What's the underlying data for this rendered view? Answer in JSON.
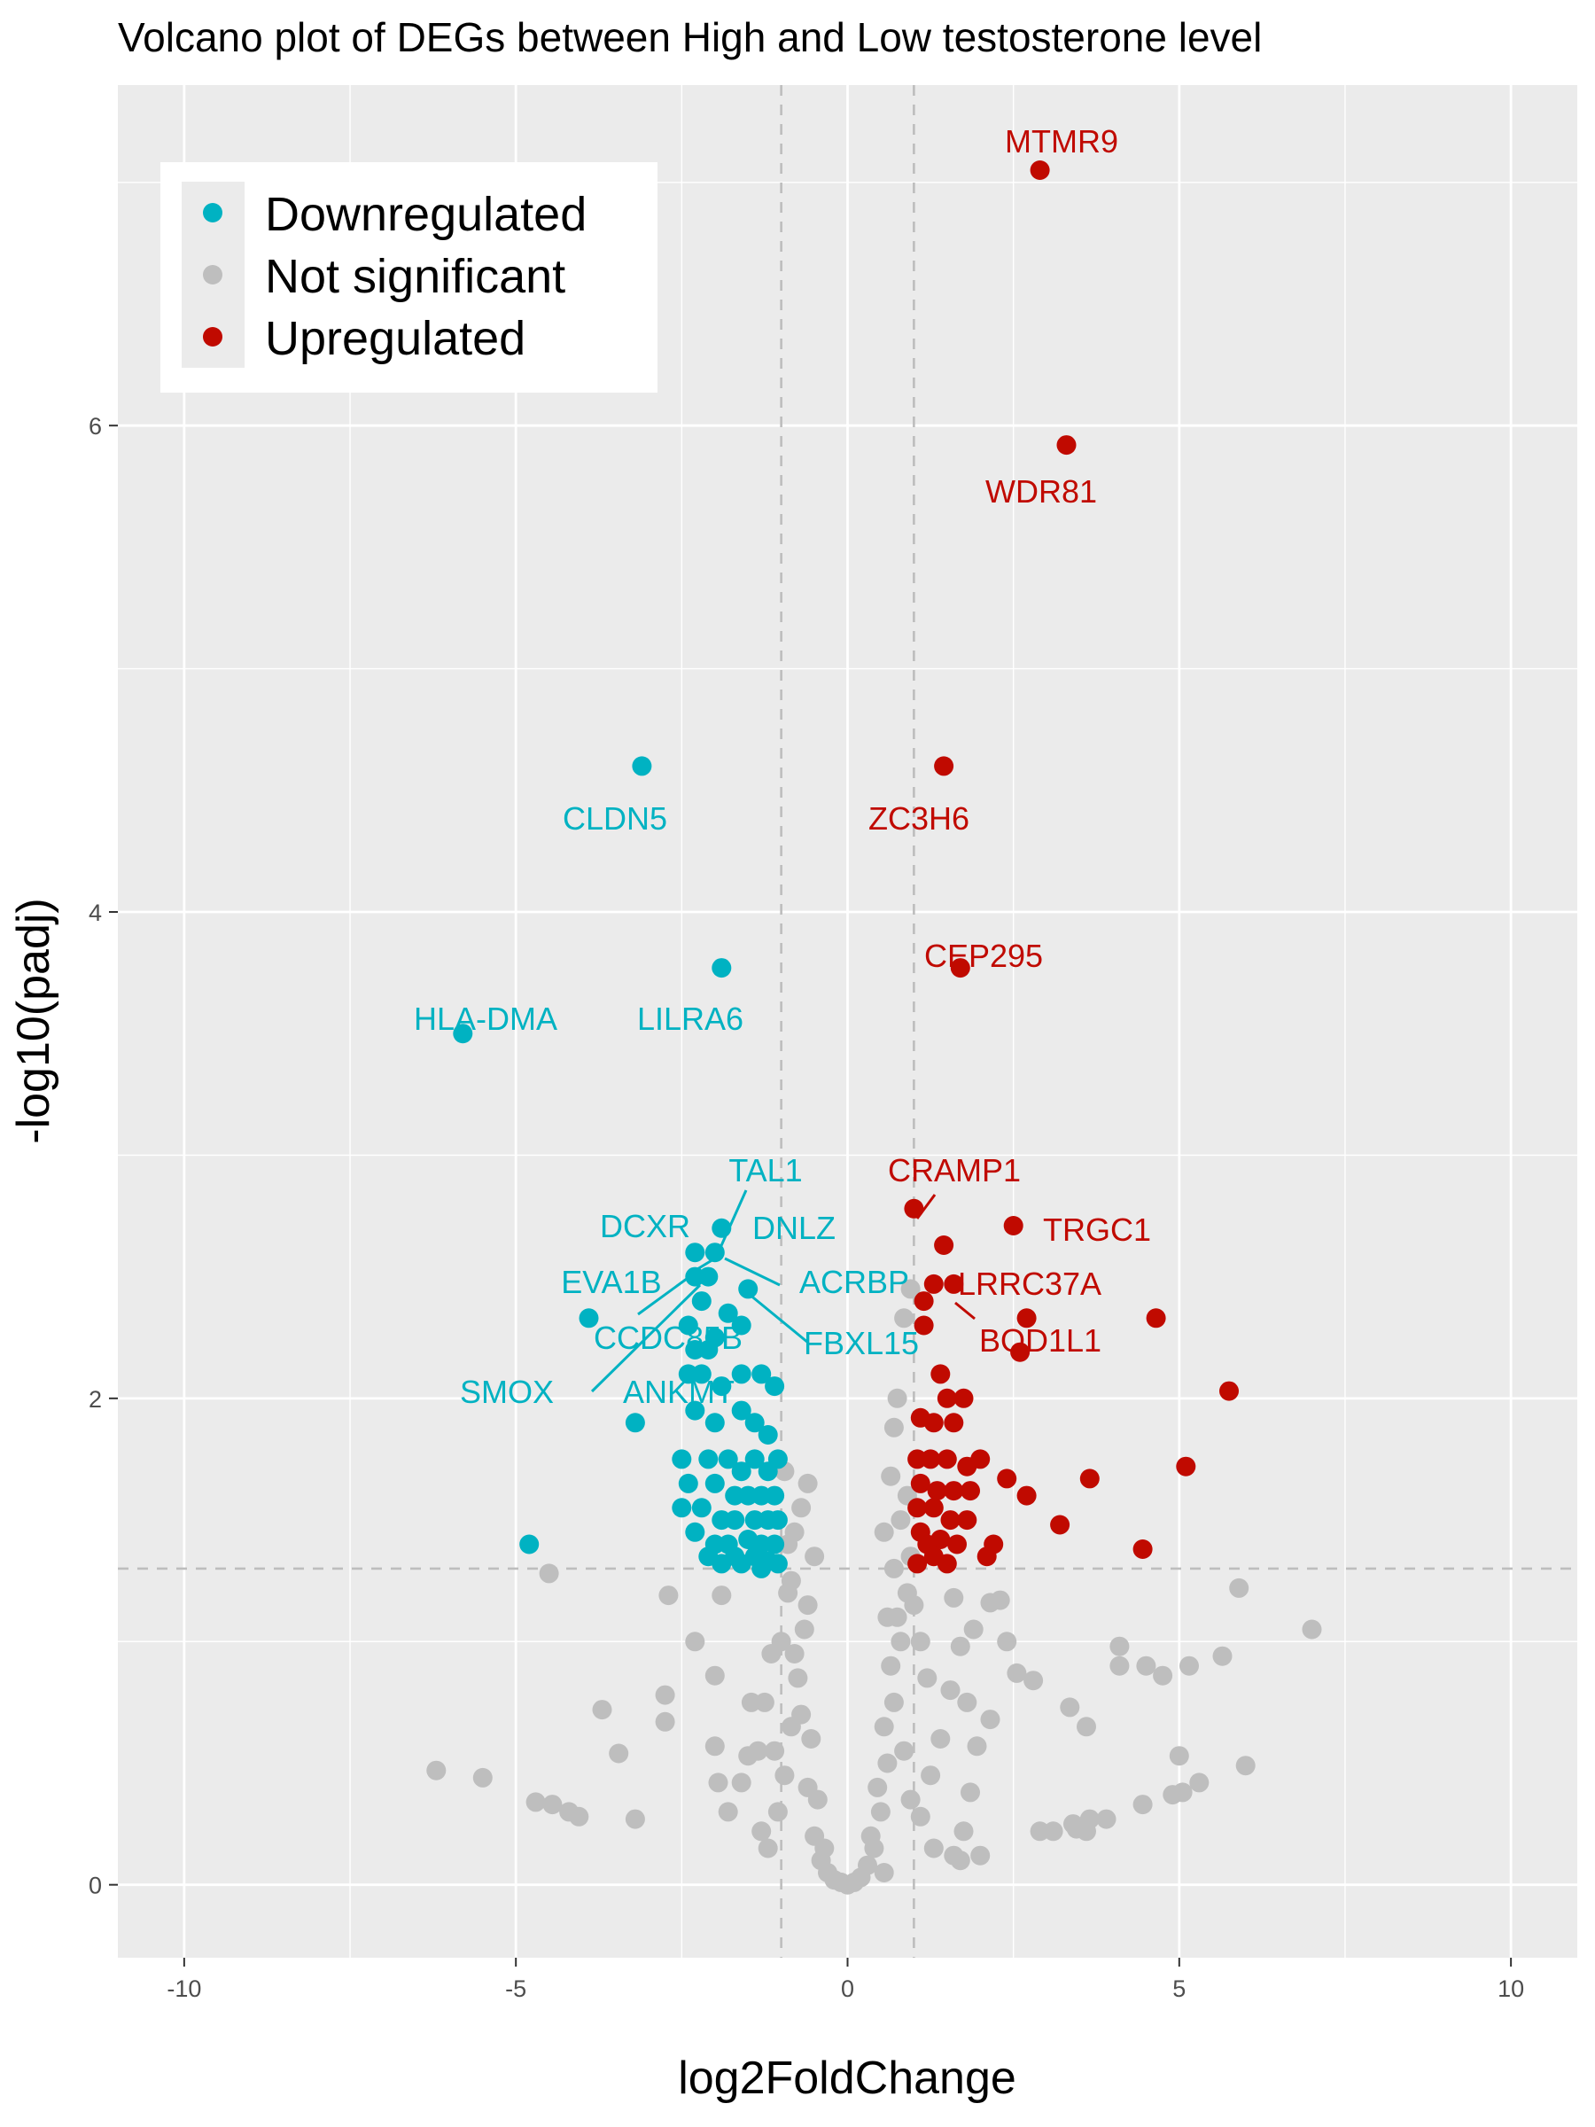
{
  "chart_data": {
    "type": "scatter",
    "title": "Volcano plot of DEGs between High and Low testosterone level",
    "xlabel": "log2FoldChange",
    "ylabel": "-log10(padj)",
    "xlim": [
      -11,
      11
    ],
    "ylim": [
      -0.3,
      7.4
    ],
    "x_ticks": [
      "-10",
      "-5",
      "0",
      "5",
      "10"
    ],
    "x_tick_values": [
      -10,
      -5,
      0,
      5,
      10
    ],
    "y_ticks": [
      "0",
      "2",
      "4",
      "6"
    ],
    "y_tick_values": [
      0,
      2,
      4,
      6
    ],
    "grid": true,
    "thresholds": {
      "log2fc": [
        -1,
        1
      ],
      "neg_log10_padj": 1.3
    },
    "legend": {
      "position": "top-left",
      "entries": [
        {
          "label": "Downregulated",
          "color": "#00b2c2"
        },
        {
          "label": "Not significant",
          "color": "#bebebe"
        },
        {
          "label": "Upregulated",
          "color": "#c00a00"
        }
      ]
    },
    "colors": {
      "down": "#00b2c2",
      "ns": "#bebebe",
      "up": "#c00a00",
      "panel": "#ebebeb",
      "grid": "#ffffff"
    },
    "series": [
      {
        "name": "Downregulated",
        "points": [
          [
            -3.1,
            4.6
          ],
          [
            -1.9,
            3.77
          ],
          [
            -5.8,
            3.5
          ],
          [
            -4.8,
            1.4
          ],
          [
            -3.2,
            1.9
          ],
          [
            -3.9,
            2.33
          ],
          [
            -1.9,
            2.7
          ],
          [
            -2.3,
            2.6
          ],
          [
            -2.0,
            2.6
          ],
          [
            -2.3,
            2.5
          ],
          [
            -2.1,
            2.5
          ],
          [
            -2.2,
            2.4
          ],
          [
            -1.8,
            2.35
          ],
          [
            -1.5,
            2.45
          ],
          [
            -2.4,
            2.3
          ],
          [
            -1.6,
            2.3
          ],
          [
            -2.0,
            2.25
          ],
          [
            -2.3,
            2.2
          ],
          [
            -2.1,
            2.2
          ],
          [
            -2.4,
            2.1
          ],
          [
            -2.2,
            2.1
          ],
          [
            -1.9,
            2.05
          ],
          [
            -1.6,
            2.1
          ],
          [
            -1.3,
            2.1
          ],
          [
            -1.1,
            2.05
          ],
          [
            -2.3,
            1.95
          ],
          [
            -2.0,
            1.9
          ],
          [
            -1.6,
            1.95
          ],
          [
            -1.4,
            1.9
          ],
          [
            -1.2,
            1.85
          ],
          [
            -2.5,
            1.75
          ],
          [
            -2.1,
            1.75
          ],
          [
            -1.8,
            1.75
          ],
          [
            -1.6,
            1.7
          ],
          [
            -1.4,
            1.75
          ],
          [
            -1.2,
            1.7
          ],
          [
            -1.05,
            1.75
          ],
          [
            -2.4,
            1.65
          ],
          [
            -2.0,
            1.65
          ],
          [
            -1.7,
            1.6
          ],
          [
            -1.5,
            1.6
          ],
          [
            -1.3,
            1.6
          ],
          [
            -1.1,
            1.6
          ],
          [
            -2.5,
            1.55
          ],
          [
            -2.2,
            1.55
          ],
          [
            -1.9,
            1.5
          ],
          [
            -1.7,
            1.5
          ],
          [
            -1.4,
            1.5
          ],
          [
            -1.2,
            1.5
          ],
          [
            -1.05,
            1.5
          ],
          [
            -2.3,
            1.45
          ],
          [
            -2.0,
            1.4
          ],
          [
            -1.8,
            1.4
          ],
          [
            -1.5,
            1.42
          ],
          [
            -1.3,
            1.4
          ],
          [
            -1.1,
            1.4
          ],
          [
            -2.1,
            1.35
          ],
          [
            -1.7,
            1.35
          ],
          [
            -1.4,
            1.35
          ],
          [
            -1.2,
            1.33
          ],
          [
            -1.9,
            1.32
          ],
          [
            -1.6,
            1.32
          ],
          [
            -1.05,
            1.32
          ],
          [
            -1.3,
            1.3
          ]
        ]
      },
      {
        "name": "Upregulated",
        "points": [
          [
            2.9,
            7.05
          ],
          [
            3.3,
            5.92
          ],
          [
            1.45,
            4.6
          ],
          [
            1.7,
            3.77
          ],
          [
            1.0,
            2.78
          ],
          [
            2.5,
            2.71
          ],
          [
            1.45,
            2.63
          ],
          [
            1.3,
            2.47
          ],
          [
            1.6,
            2.47
          ],
          [
            1.15,
            2.4
          ],
          [
            2.7,
            2.33
          ],
          [
            4.65,
            2.33
          ],
          [
            1.15,
            2.3
          ],
          [
            2.6,
            2.19
          ],
          [
            5.75,
            2.03
          ],
          [
            1.4,
            2.1
          ],
          [
            1.5,
            2.0
          ],
          [
            1.75,
            2.0
          ],
          [
            1.1,
            1.92
          ],
          [
            1.3,
            1.9
          ],
          [
            1.6,
            1.9
          ],
          [
            1.05,
            1.75
          ],
          [
            1.25,
            1.75
          ],
          [
            1.5,
            1.75
          ],
          [
            1.8,
            1.72
          ],
          [
            2.0,
            1.75
          ],
          [
            5.1,
            1.72
          ],
          [
            3.65,
            1.67
          ],
          [
            2.4,
            1.67
          ],
          [
            1.1,
            1.65
          ],
          [
            1.35,
            1.62
          ],
          [
            1.6,
            1.62
          ],
          [
            1.85,
            1.62
          ],
          [
            2.7,
            1.6
          ],
          [
            1.05,
            1.55
          ],
          [
            1.3,
            1.55
          ],
          [
            1.55,
            1.5
          ],
          [
            1.8,
            1.5
          ],
          [
            1.1,
            1.45
          ],
          [
            1.4,
            1.42
          ],
          [
            3.2,
            1.48
          ],
          [
            1.2,
            1.4
          ],
          [
            1.65,
            1.4
          ],
          [
            2.2,
            1.4
          ],
          [
            4.45,
            1.38
          ],
          [
            1.3,
            1.35
          ],
          [
            2.1,
            1.35
          ],
          [
            1.5,
            1.32
          ],
          [
            1.05,
            1.32
          ]
        ]
      },
      {
        "name": "Not significant",
        "points": [
          [
            -4.5,
            1.28
          ],
          [
            -6.2,
            0.47
          ],
          [
            -5.5,
            0.44
          ],
          [
            -4.7,
            0.34
          ],
          [
            -4.45,
            0.33
          ],
          [
            -4.2,
            0.3
          ],
          [
            -4.05,
            0.28
          ],
          [
            -3.7,
            0.72
          ],
          [
            -3.45,
            0.54
          ],
          [
            -3.2,
            0.27
          ],
          [
            -2.75,
            0.78
          ],
          [
            -2.75,
            0.67
          ],
          [
            -2.7,
            1.19
          ],
          [
            -2.3,
            1.0
          ],
          [
            -2.0,
            0.86
          ],
          [
            -1.9,
            1.19
          ],
          [
            -2.0,
            0.57
          ],
          [
            -1.95,
            0.42
          ],
          [
            -1.6,
            0.42
          ],
          [
            -1.5,
            0.53
          ],
          [
            -1.8,
            0.3
          ],
          [
            -1.45,
            0.75
          ],
          [
            -1.35,
            0.55
          ],
          [
            -1.3,
            0.22
          ],
          [
            -1.2,
            0.15
          ],
          [
            -1.0,
            1.0
          ],
          [
            -0.9,
            1.2
          ],
          [
            -0.8,
            0.95
          ],
          [
            -0.7,
            0.7
          ],
          [
            -0.6,
            0.4
          ],
          [
            -0.5,
            0.2
          ],
          [
            -0.4,
            0.1
          ],
          [
            -0.3,
            0.05
          ],
          [
            -0.2,
            0.02
          ],
          [
            -0.1,
            0.01
          ],
          [
            0.0,
            0.0
          ],
          [
            0.1,
            0.01
          ],
          [
            0.2,
            0.03
          ],
          [
            0.3,
            0.08
          ],
          [
            0.4,
            0.15
          ],
          [
            0.5,
            0.3
          ],
          [
            0.6,
            0.5
          ],
          [
            0.7,
            0.75
          ],
          [
            0.8,
            1.0
          ],
          [
            0.9,
            1.2
          ],
          [
            1.0,
            1.15
          ],
          [
            0.95,
            2.45
          ],
          [
            0.85,
            2.33
          ],
          [
            0.75,
            2.0
          ],
          [
            0.7,
            1.88
          ],
          [
            0.65,
            1.68
          ],
          [
            0.55,
            0.05
          ],
          [
            1.3,
            0.15
          ],
          [
            1.7,
            0.1
          ],
          [
            2.0,
            0.12
          ],
          [
            1.8,
            0.75
          ],
          [
            1.7,
            0.98
          ],
          [
            1.6,
            1.18
          ],
          [
            2.3,
            1.17
          ],
          [
            2.4,
            1.0
          ],
          [
            2.55,
            0.87
          ],
          [
            2.8,
            0.84
          ],
          [
            3.35,
            0.73
          ],
          [
            3.6,
            0.65
          ],
          [
            2.9,
            0.22
          ],
          [
            3.1,
            0.22
          ],
          [
            3.4,
            0.25
          ],
          [
            3.65,
            0.27
          ],
          [
            3.9,
            0.27
          ],
          [
            4.1,
            0.98
          ],
          [
            4.1,
            0.9
          ],
          [
            4.5,
            0.9
          ],
          [
            4.75,
            0.86
          ],
          [
            5.15,
            0.9
          ],
          [
            5.65,
            0.94
          ],
          [
            5.9,
            1.22
          ],
          [
            7.0,
            1.05
          ],
          [
            4.45,
            0.33
          ],
          [
            4.9,
            0.37
          ],
          [
            5.05,
            0.38
          ],
          [
            5.3,
            0.42
          ],
          [
            6.0,
            0.49
          ],
          [
            5.0,
            0.53
          ],
          [
            3.6,
            0.22
          ],
          [
            3.45,
            0.23
          ],
          [
            2.15,
            1.16
          ],
          [
            1.9,
            1.05
          ],
          [
            2.15,
            0.68
          ],
          [
            1.95,
            0.57
          ],
          [
            1.85,
            0.38
          ],
          [
            1.75,
            0.22
          ],
          [
            1.6,
            0.12
          ],
          [
            -0.95,
            0.45
          ],
          [
            -1.1,
            0.55
          ],
          [
            -1.05,
            0.3
          ],
          [
            -0.85,
            0.65
          ],
          [
            -0.75,
            0.85
          ],
          [
            -0.65,
            1.05
          ],
          [
            -0.55,
            0.6
          ],
          [
            -0.45,
            0.35
          ],
          [
            -0.35,
            0.15
          ],
          [
            0.35,
            0.2
          ],
          [
            0.45,
            0.4
          ],
          [
            0.55,
            0.65
          ],
          [
            0.65,
            0.9
          ],
          [
            0.75,
            1.1
          ],
          [
            0.85,
            0.55
          ],
          [
            0.95,
            0.35
          ],
          [
            1.1,
            0.28
          ],
          [
            1.25,
            0.45
          ],
          [
            1.4,
            0.6
          ],
          [
            1.55,
            0.8
          ],
          [
            1.1,
            1.0
          ],
          [
            1.2,
            0.85
          ],
          [
            -1.15,
            0.95
          ],
          [
            -1.25,
            0.75
          ],
          [
            -0.85,
            1.25
          ],
          [
            -0.6,
            1.15
          ],
          [
            0.6,
            1.1
          ],
          [
            0.9,
            1.6
          ],
          [
            0.8,
            1.5
          ],
          [
            0.7,
            1.3
          ],
          [
            -0.6,
            1.65
          ],
          [
            -0.7,
            1.55
          ],
          [
            -0.8,
            1.45
          ],
          [
            -0.9,
            1.4
          ],
          [
            -0.95,
            1.7
          ],
          [
            -0.5,
            1.35
          ],
          [
            0.55,
            1.45
          ],
          [
            0.95,
            1.35
          ]
        ]
      }
    ],
    "labels": [
      {
        "text": "MTMR9",
        "group": "up"
      },
      {
        "text": "WDR81",
        "group": "up"
      },
      {
        "text": "CLDN5",
        "group": "down"
      },
      {
        "text": "ZC3H6",
        "group": "up"
      },
      {
        "text": "CEP295",
        "group": "up"
      },
      {
        "text": "HLA-DMA",
        "group": "down"
      },
      {
        "text": "LILRA6",
        "group": "down"
      },
      {
        "text": "TAL1",
        "group": "down"
      },
      {
        "text": "CRAMP1",
        "group": "up"
      },
      {
        "text": "DCXR",
        "group": "down"
      },
      {
        "text": "DNLZ",
        "group": "down"
      },
      {
        "text": "TRGC1",
        "group": "up"
      },
      {
        "text": "EVA1B",
        "group": "down"
      },
      {
        "text": "ACRBP",
        "group": "down"
      },
      {
        "text": "LRRC37A",
        "group": "up"
      },
      {
        "text": "CCDC85B",
        "group": "down"
      },
      {
        "text": "FBXL15",
        "group": "down"
      },
      {
        "text": "BOD1L1",
        "group": "up"
      },
      {
        "text": "SMOX",
        "group": "down"
      },
      {
        "text": "ANKMT",
        "group": "down"
      }
    ]
  }
}
